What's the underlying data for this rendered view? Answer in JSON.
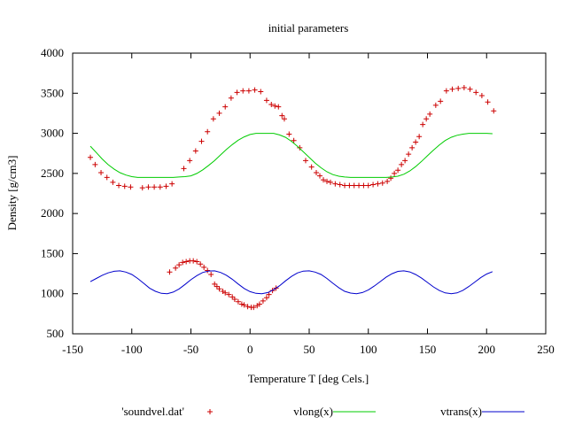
{
  "chart_data": {
    "type": "scatter",
    "title": "initial parameters",
    "xlabel": "Temperature T  [deg Cels.]",
    "ylabel": "Density [g/cm3]",
    "xlim": [
      -150,
      250
    ],
    "ylim": [
      500,
      4000
    ],
    "xticks": [
      -150,
      -100,
      -50,
      0,
      50,
      100,
      150,
      200,
      250
    ],
    "yticks": [
      500,
      1000,
      1500,
      2000,
      2500,
      3000,
      3500,
      4000
    ],
    "grid": false,
    "legend_position": "bottom",
    "series": [
      {
        "name": "'soundvel.dat'",
        "kind": "points",
        "marker": "+",
        "color": "#cc0000",
        "x": [
          -135,
          -131,
          -126,
          -121,
          -116,
          -111,
          -106,
          -101,
          -91,
          -86,
          -81,
          -76,
          -71,
          -66,
          -56,
          -51,
          -46,
          -41,
          -36,
          -31,
          -26,
          -21,
          -16,
          -11,
          -6,
          -1,
          4,
          9,
          14,
          18,
          21,
          24,
          27,
          29,
          33,
          37,
          42,
          47,
          52,
          56,
          59,
          62,
          65,
          68,
          72,
          76,
          80,
          84,
          88,
          92,
          96,
          100,
          104,
          108,
          112,
          116,
          119,
          122,
          125,
          128,
          131,
          134,
          137,
          140,
          143,
          146,
          149,
          152,
          157,
          161,
          166,
          171,
          176,
          181,
          186,
          191,
          196,
          201,
          206
        ],
        "y": [
          2700,
          2610,
          2510,
          2450,
          2390,
          2350,
          2340,
          2330,
          2320,
          2330,
          2330,
          2330,
          2340,
          2370,
          2560,
          2660,
          2780,
          2900,
          3020,
          3180,
          3250,
          3330,
          3440,
          3510,
          3530,
          3530,
          3540,
          3520,
          3410,
          3360,
          3340,
          3330,
          3220,
          3180,
          2990,
          2910,
          2820,
          2660,
          2580,
          2510,
          2470,
          2420,
          2400,
          2390,
          2370,
          2360,
          2350,
          2350,
          2350,
          2350,
          2350,
          2350,
          2360,
          2370,
          2380,
          2400,
          2440,
          2500,
          2540,
          2610,
          2660,
          2740,
          2820,
          2890,
          2960,
          3110,
          3180,
          3240,
          3350,
          3400,
          3530,
          3550,
          3560,
          3570,
          3550,
          3510,
          3470,
          3390,
          3280
        ]
      },
      {
        "name": "'soundvel.dat'",
        "kind": "points",
        "marker": "+",
        "color": "#cc0000",
        "x": [
          -68,
          -63,
          -60,
          -57,
          -54,
          -51,
          -48,
          -45,
          -42,
          -39,
          -36,
          -33,
          -30,
          -28,
          -26,
          -23,
          -21,
          -18,
          -15,
          -13,
          -10,
          -7,
          -5,
          -2,
          1,
          3,
          6,
          8,
          11,
          14,
          16,
          19,
          22
        ],
        "y": [
          1270,
          1320,
          1360,
          1390,
          1400,
          1410,
          1410,
          1400,
          1370,
          1330,
          1290,
          1240,
          1120,
          1090,
          1060,
          1030,
          1010,
          990,
          960,
          930,
          900,
          870,
          860,
          840,
          830,
          830,
          850,
          870,
          910,
          950,
          990,
          1040,
          1070
        ]
      },
      {
        "name": "vlong(x)",
        "kind": "line",
        "color": "#00cc00",
        "x": [
          -135,
          -130,
          -125,
          -120,
          -115,
          -110,
          -105,
          -100,
          -95,
          -90,
          -85,
          -80,
          -75,
          -70,
          -65,
          -60,
          -55,
          -50,
          -45,
          -40,
          -35,
          -30,
          -25,
          -20,
          -15,
          -10,
          -5,
          0,
          5,
          10,
          15,
          20,
          25,
          30,
          35,
          40,
          45,
          50,
          55,
          60,
          65,
          70,
          75,
          80,
          85,
          90,
          95,
          100,
          105,
          110,
          115,
          120,
          125,
          130,
          135,
          140,
          145,
          150,
          155,
          160,
          165,
          170,
          175,
          180,
          185,
          190,
          195,
          200,
          205
        ],
        "y": [
          2840,
          2760,
          2680,
          2610,
          2555,
          2510,
          2480,
          2460,
          2450,
          2450,
          2450,
          2450,
          2450,
          2450,
          2450,
          2455,
          2460,
          2470,
          2500,
          2545,
          2600,
          2660,
          2730,
          2800,
          2860,
          2915,
          2955,
          2985,
          3000,
          3000,
          3000,
          3000,
          2980,
          2950,
          2900,
          2840,
          2770,
          2700,
          2630,
          2570,
          2520,
          2485,
          2465,
          2455,
          2450,
          2450,
          2450,
          2450,
          2450,
          2450,
          2450,
          2455,
          2465,
          2490,
          2530,
          2585,
          2650,
          2720,
          2790,
          2855,
          2910,
          2950,
          2975,
          2990,
          3000,
          3000,
          3000,
          3000,
          2995
        ]
      },
      {
        "name": "vtrans(x)",
        "kind": "line",
        "color": "#0000cc",
        "x": [
          -135,
          -130,
          -125,
          -120,
          -115,
          -110,
          -105,
          -100,
          -95,
          -90,
          -85,
          -80,
          -75,
          -70,
          -65,
          -60,
          -55,
          -50,
          -45,
          -40,
          -35,
          -30,
          -25,
          -20,
          -15,
          -10,
          -5,
          0,
          5,
          10,
          15,
          20,
          25,
          30,
          35,
          40,
          45,
          50,
          55,
          60,
          65,
          70,
          75,
          80,
          85,
          90,
          95,
          100,
          105,
          110,
          115,
          120,
          125,
          130,
          135,
          140,
          145,
          150,
          155,
          160,
          165,
          170,
          175,
          180,
          185,
          190,
          195,
          200,
          205
        ],
        "y": [
          1150,
          1190,
          1230,
          1260,
          1280,
          1285,
          1270,
          1240,
          1190,
          1130,
          1070,
          1030,
          1005,
          1000,
          1020,
          1060,
          1115,
          1175,
          1225,
          1265,
          1283,
          1285,
          1265,
          1230,
          1180,
          1120,
          1065,
          1025,
          1005,
          1000,
          1015,
          1050,
          1100,
          1160,
          1215,
          1258,
          1282,
          1285,
          1270,
          1240,
          1190,
          1130,
          1075,
          1030,
          1008,
          1000,
          1015,
          1048,
          1095,
          1150,
          1205,
          1250,
          1278,
          1285,
          1272,
          1240,
          1195,
          1140,
          1085,
          1040,
          1010,
          1000,
          1010,
          1042,
          1090,
          1145,
          1200,
          1245,
          1275
        ]
      }
    ]
  }
}
